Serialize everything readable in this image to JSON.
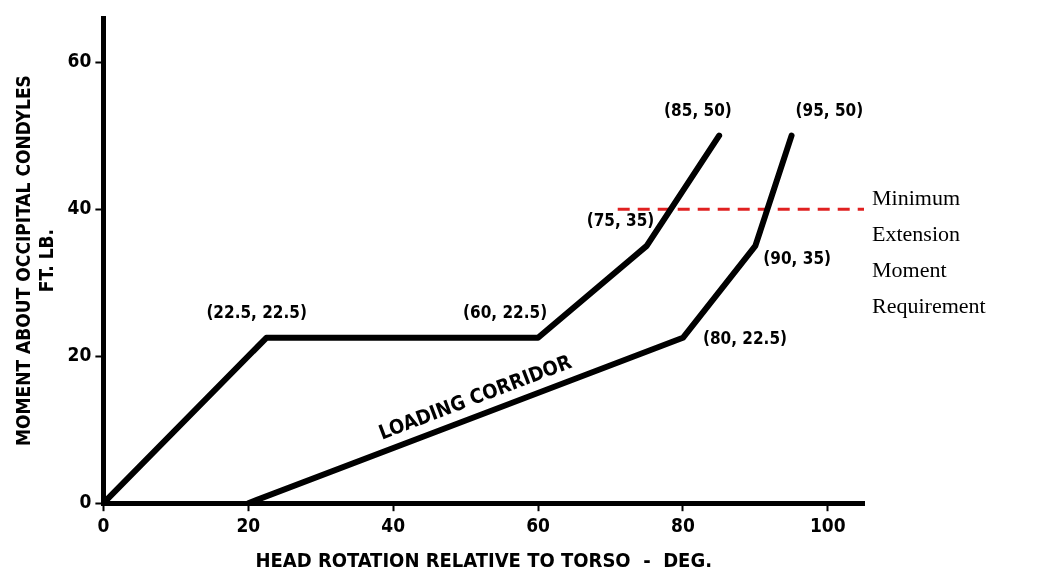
{
  "chart_data": {
    "type": "line",
    "xlabel": "HEAD ROTATION RELATIVE TO TORSO  -  DEG.",
    "ylabel": "MOMENT ABOUT OCCIPITAL CONDYLES\nFT. LB.",
    "xlim": [
      0,
      105
    ],
    "xticks": [
      0,
      20,
      40,
      60,
      80,
      100
    ],
    "ylim": [
      0,
      66
    ],
    "yticks": [
      0,
      20,
      40,
      60
    ],
    "grid": false,
    "legend": false,
    "marker": "none",
    "series": [
      {
        "x": [
          0,
          22.5,
          60,
          75,
          85
        ],
        "values": [
          0,
          22.5,
          22.5,
          35,
          50
        ],
        "color": "#000000",
        "line_style": "solid"
      },
      {
        "x": [
          20,
          80,
          90,
          95
        ],
        "values": [
          0,
          22.5,
          35,
          50
        ],
        "color": "#000000",
        "line_style": "solid"
      },
      {
        "name": "Minimum Extension Moment Requirement",
        "x": [
          71,
          105
        ],
        "values": [
          40,
          40
        ],
        "color": "#e02020",
        "line_style": "dashed"
      }
    ],
    "annotations": [
      {
        "text": "(22.5, 22.5)",
        "x": 22.5,
        "y": 22.5
      },
      {
        "text": "(60, 22.5)",
        "x": 60,
        "y": 22.5
      },
      {
        "text": "(75, 35)",
        "x": 75,
        "y": 35
      },
      {
        "text": "(85, 50)",
        "x": 85,
        "y": 50
      },
      {
        "text": "(80, 22.5)",
        "x": 80,
        "y": 22.5
      },
      {
        "text": "(90, 35)",
        "x": 90,
        "y": 35
      },
      {
        "text": "(95, 50)",
        "x": 95,
        "y": 50
      },
      "LOADING CORRIDOR"
    ]
  }
}
